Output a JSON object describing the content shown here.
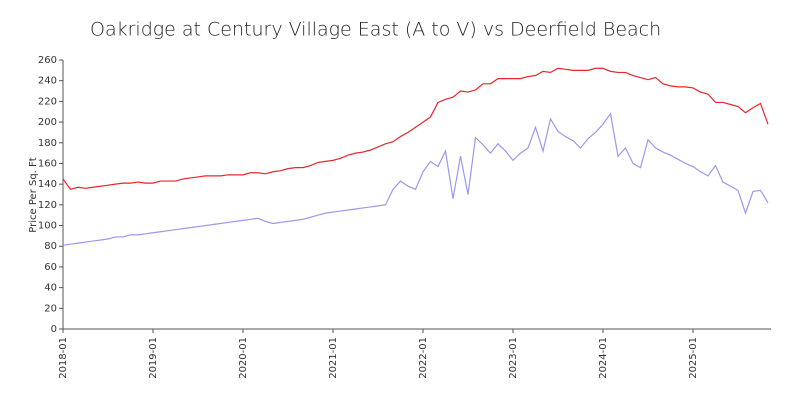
{
  "chart_data": {
    "type": "line",
    "title": "Oakridge at Century Village East (A to V) vs Deerfield Beach",
    "y_label": "Price Per Sq. Ft",
    "categories": [
      "2018-01",
      null,
      null,
      null,
      null,
      null,
      null,
      null,
      null,
      null,
      null,
      null,
      "2019-01",
      null,
      null,
      null,
      null,
      null,
      null,
      null,
      null,
      null,
      null,
      null,
      "2020-01",
      null,
      null,
      null,
      null,
      null,
      null,
      null,
      null,
      null,
      null,
      null,
      "2021-01",
      null,
      null,
      null,
      null,
      null,
      null,
      null,
      null,
      null,
      null,
      null,
      "2022-01",
      null,
      null,
      null,
      null,
      null,
      null,
      null,
      null,
      null,
      null,
      null,
      "2023-01",
      null,
      null,
      null,
      null,
      null,
      null,
      null,
      null,
      null,
      null,
      null,
      "2024-01",
      null,
      null,
      null,
      null,
      null,
      null,
      null,
      null,
      null,
      null,
      null,
      "2025-01",
      null,
      null,
      null,
      null,
      null,
      null,
      null,
      null,
      null,
      null
    ],
    "series": [
      {
        "color": "#e8262b",
        "values": [
          145,
          135,
          137,
          136,
          137,
          138,
          139,
          140,
          141,
          141,
          142,
          141,
          141,
          143,
          143,
          143,
          145,
          146,
          147,
          148,
          148,
          148,
          149,
          149,
          149,
          151,
          151,
          150,
          152,
          153,
          155,
          156,
          156,
          158,
          161,
          162,
          163,
          165,
          168,
          170,
          171,
          173,
          176,
          179,
          181,
          186,
          190,
          195,
          200,
          205,
          219,
          222,
          224,
          230,
          229,
          231,
          237,
          237,
          242,
          242,
          242,
          242,
          244,
          245,
          249,
          248,
          252,
          251,
          250,
          250,
          250,
          252,
          252,
          249,
          248,
          248,
          245,
          243,
          241,
          243,
          237,
          235,
          234,
          234,
          233,
          229,
          227,
          219,
          219,
          217,
          215,
          209,
          214,
          218,
          198
        ]
      },
      {
        "color": "#9999ee",
        "values": [
          81,
          82,
          83,
          84,
          85,
          86,
          87,
          89,
          89,
          91,
          91,
          92,
          93,
          94,
          95,
          96,
          97,
          98,
          99,
          100,
          101,
          102,
          103,
          104,
          105,
          106,
          107,
          104,
          102,
          103,
          104,
          105,
          106,
          108,
          110,
          112,
          113,
          114,
          115,
          116,
          117,
          118,
          119,
          120,
          135,
          143,
          138,
          135,
          152,
          162,
          157,
          172,
          126,
          167,
          130,
          185,
          178,
          170,
          179,
          172,
          163,
          170,
          175,
          195,
          172,
          203,
          191,
          186,
          182,
          175,
          184,
          190,
          198,
          208,
          167,
          175,
          160,
          156,
          183,
          175,
          171,
          168,
          164,
          160,
          157,
          152,
          148,
          158,
          142,
          138,
          134,
          112,
          133,
          134,
          122
        ]
      }
    ],
    "ylim": [
      0,
      260
    ],
    "yticks": [
      0,
      20,
      40,
      60,
      80,
      100,
      120,
      140,
      160,
      180,
      200,
      220,
      240,
      260
    ]
  }
}
